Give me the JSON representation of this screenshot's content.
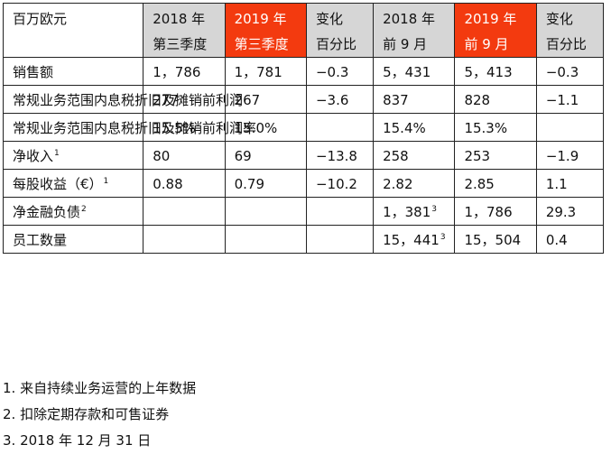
{
  "table": {
    "header": {
      "unit": "百万欧元",
      "columns": [
        {
          "line1": "2018 年",
          "line2": "第三季度",
          "style": "gray"
        },
        {
          "line1": "2019 年",
          "line2": "第三季度",
          "style": "orange"
        },
        {
          "line1": "变化",
          "line2": "百分比",
          "style": "gray"
        },
        {
          "line1": "2018 年",
          "line2": "前 9 月",
          "style": "gray"
        },
        {
          "line1": "2019 年",
          "line2": "前 9 月",
          "style": "orange"
        },
        {
          "line1": "变化",
          "line2": "百分比",
          "style": "gray"
        }
      ]
    },
    "rows": [
      {
        "label": "销售额",
        "label_sup": "",
        "cells": [
          "1，786",
          "1，781",
          "−0.3",
          "5，431",
          "5，413",
          "−0.3"
        ],
        "sups": [
          "",
          "",
          "",
          "",
          "",
          ""
        ]
      },
      {
        "label": "常规业务范围内息税折旧及摊销前利润",
        "label_sup": "",
        "cells": [
          "277",
          "267",
          "−3.6",
          "837",
          "828",
          "−1.1"
        ],
        "sups": [
          "",
          "",
          "",
          "",
          "",
          ""
        ]
      },
      {
        "label": "常规业务范围内息税折旧及摊销前利润率",
        "label_sup": "",
        "cells": [
          "15.5%",
          "15.0%",
          "",
          "15.4%",
          "15.3%",
          ""
        ],
        "sups": [
          "",
          "",
          "",
          "",
          "",
          ""
        ]
      },
      {
        "label": "净收入",
        "label_sup": "1",
        "cells": [
          "80",
          "69",
          "−13.8",
          "258",
          "253",
          "−1.9"
        ],
        "sups": [
          "",
          "",
          "",
          "",
          "",
          ""
        ]
      },
      {
        "label": "每股收益（€）",
        "label_sup": "1",
        "cells": [
          "0.88",
          "0.79",
          "−10.2",
          "2.82",
          "2.85",
          "1.1"
        ],
        "sups": [
          "",
          "",
          "",
          "",
          "",
          ""
        ]
      },
      {
        "label": "净金融负债",
        "label_sup": "2",
        "cells": [
          "",
          "",
          "",
          "1，381",
          "1，786",
          "29.3"
        ],
        "sups": [
          "",
          "",
          "",
          "3",
          "",
          ""
        ]
      },
      {
        "label": "员工数量",
        "label_sup": "",
        "cells": [
          "",
          "",
          "",
          "15，441",
          "15，504",
          "0.4"
        ],
        "sups": [
          "",
          "",
          "",
          "3",
          "",
          ""
        ]
      }
    ]
  },
  "footnotes": [
    "1. 来自持续业务运营的上年数据",
    "2. 扣除定期存款和可售证券",
    "3. 2018 年 12 月 31 日"
  ]
}
